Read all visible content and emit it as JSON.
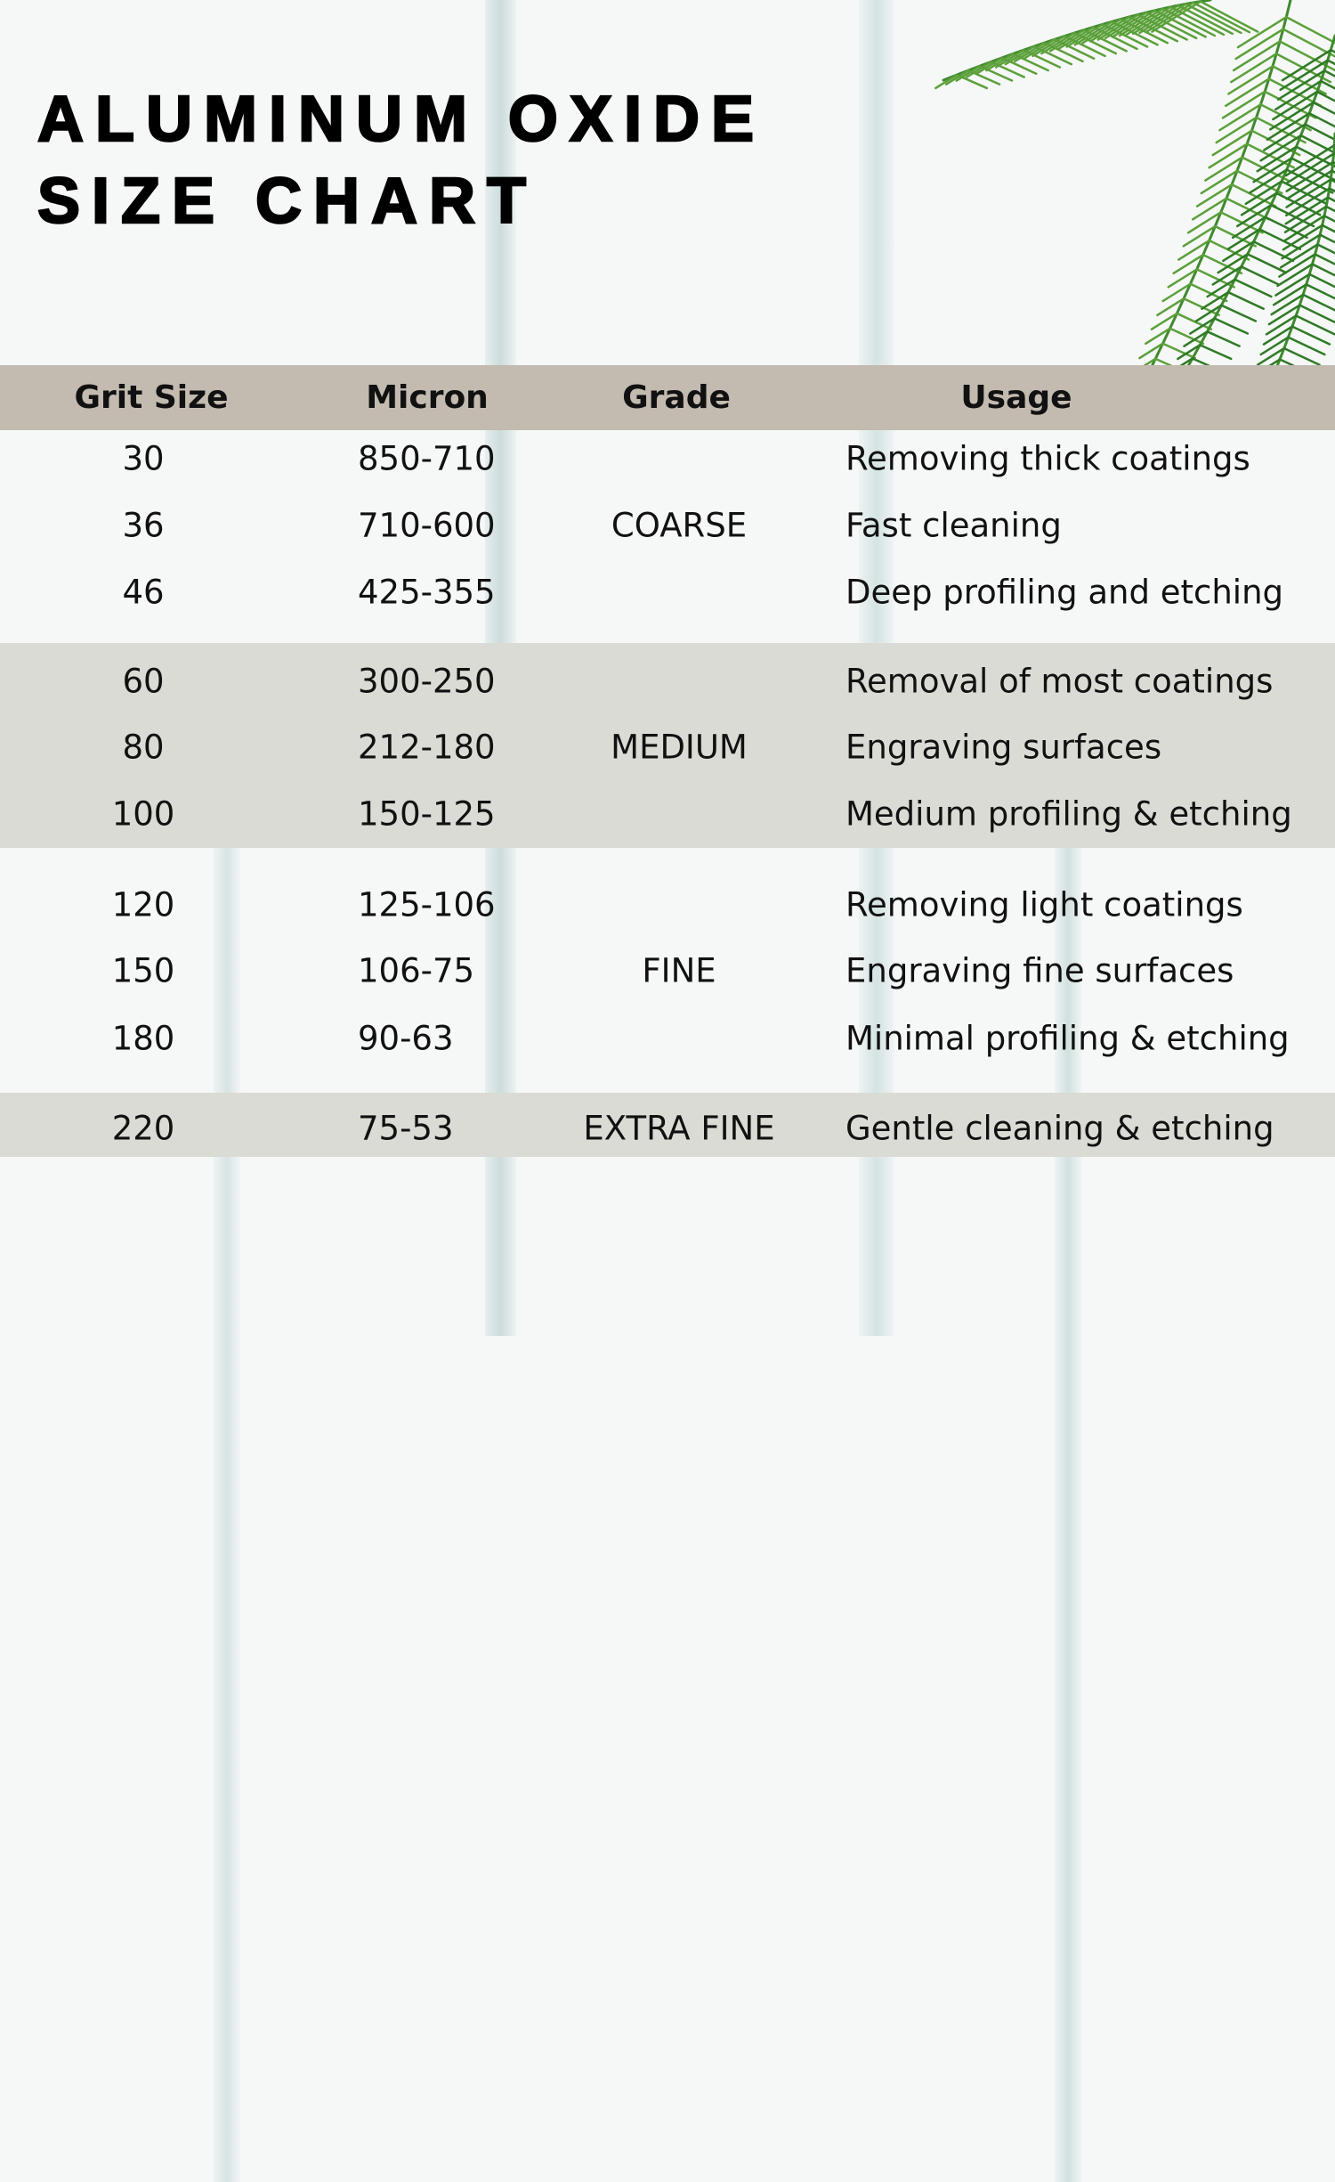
{
  "title": {
    "line1": "ALUMINUM OXIDE",
    "line2": "SIZE CHART"
  },
  "colors": {
    "header_bg": "#c3bab0",
    "band_bg": "#dadbd5",
    "text": "#111111",
    "leaf": "#3f8a2e"
  },
  "decor": {
    "icon": "palm-leaf-icon"
  },
  "table": {
    "headers": [
      "Grit Size",
      "Micron",
      "Grade",
      "Usage"
    ],
    "groups": [
      {
        "grade": "COARSE",
        "rows": [
          {
            "grit": "30",
            "micron": "850-710",
            "usage": "Removing thick coatings"
          },
          {
            "grit": "36",
            "micron": "710-600",
            "usage": "Fast cleaning"
          },
          {
            "grit": "46",
            "micron": "425-355",
            "usage": "Deep profiling and etching"
          }
        ]
      },
      {
        "grade": "MEDIUM",
        "rows": [
          {
            "grit": "60",
            "micron": "300-250",
            "usage": "Removal of most coatings"
          },
          {
            "grit": "80",
            "micron": "212-180",
            "usage": "Engraving surfaces"
          },
          {
            "grit": "100",
            "micron": "150-125",
            "usage": "Medium profiling & etching"
          }
        ]
      },
      {
        "grade": "FINE",
        "rows": [
          {
            "grit": "120",
            "micron": "125-106",
            "usage": "Removing light coatings"
          },
          {
            "grit": "150",
            "micron": "106-75",
            "usage": "Engraving fine surfaces"
          },
          {
            "grit": "180",
            "micron": "90-63",
            "usage": "Minimal profiling & etching"
          }
        ]
      },
      {
        "grade": "EXTRA FINE",
        "rows": [
          {
            "grit": "220",
            "micron": "75-53",
            "usage": "Gentle cleaning & etching"
          }
        ]
      }
    ]
  }
}
